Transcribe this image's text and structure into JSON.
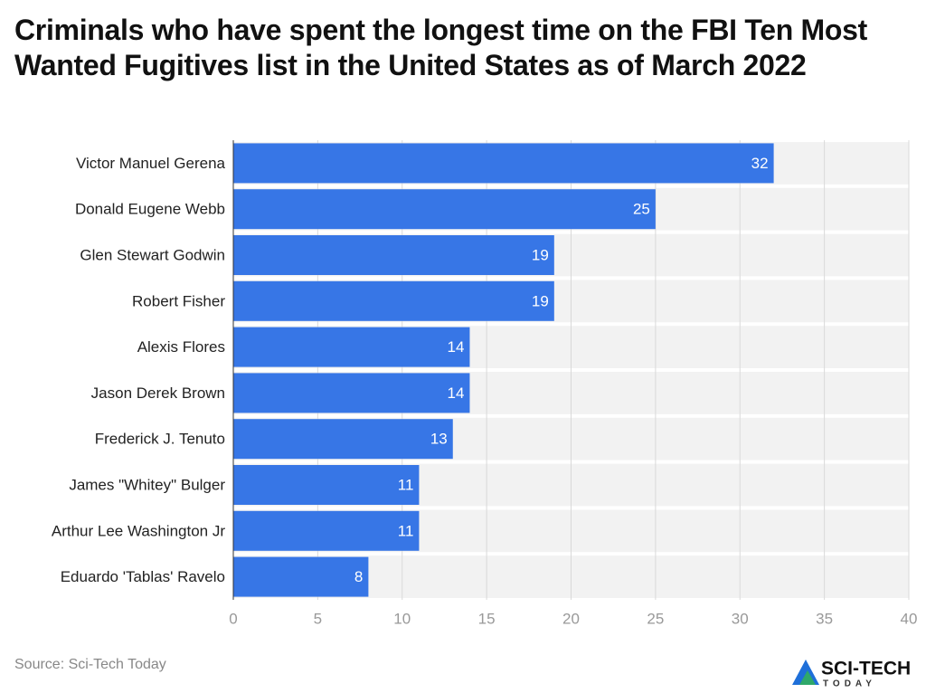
{
  "chart_data": {
    "type": "bar",
    "orientation": "horizontal",
    "title": "Criminals who have spent the longest time on the FBI Ten Most Wanted Fugitives list in the United States as of March 2022",
    "categories": [
      "Victor Manuel Gerena",
      "Donald Eugene Webb",
      "Glen Stewart Godwin",
      "Robert Fisher",
      "Alexis Flores",
      "Jason Derek Brown",
      "Frederick J. Tenuto",
      "James \"Whitey\" Bulger",
      "Arthur Lee Washington Jr",
      "Eduardo 'Tablas' Ravelo"
    ],
    "values": [
      32,
      25,
      19,
      19,
      14,
      14,
      13,
      11,
      11,
      8
    ],
    "color": "#3776e6",
    "xlim": [
      0,
      40
    ],
    "xticks": [
      0,
      5,
      10,
      15,
      20,
      25,
      30,
      35,
      40
    ],
    "grid": true
  },
  "source": "Source: Sci-Tech Today",
  "logo": {
    "name": "SCI-TECH",
    "tagline": "TODAY"
  }
}
